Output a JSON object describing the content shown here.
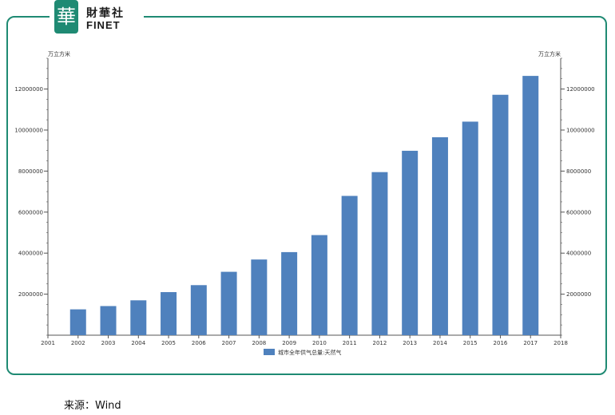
{
  "logo": {
    "badge_char": "華",
    "name_cn": "財華社",
    "name_en": "FINET"
  },
  "source_text": "来源：Wind",
  "chart_data": {
    "type": "bar",
    "categories": [
      "2002",
      "2003",
      "2004",
      "2005",
      "2006",
      "2007",
      "2008",
      "2009",
      "2010",
      "2011",
      "2012",
      "2013",
      "2014",
      "2015",
      "2016",
      "2017"
    ],
    "series": [
      {
        "name": "城市全年供气总量:天然气",
        "color": "#4f81bd",
        "values": [
          1260000,
          1420000,
          1700000,
          2100000,
          2440000,
          3090000,
          3690000,
          4050000,
          4880000,
          6790000,
          7950000,
          8990000,
          9650000,
          10410000,
          11720000,
          12640000
        ]
      }
    ],
    "x_ticks": [
      "2001",
      "2002",
      "2003",
      "2004",
      "2005",
      "2006",
      "2007",
      "2008",
      "2009",
      "2010",
      "2011",
      "2012",
      "2013",
      "2014",
      "2015",
      "2016",
      "2017",
      "2018"
    ],
    "ylim": [
      0,
      13500000
    ],
    "y_ticks": [
      "2000000",
      "4000000",
      "6000000",
      "8000000",
      "10000000",
      "12000000"
    ],
    "ylabel_left": "万立方米",
    "ylabel_right": "万立方米",
    "legend_position": "bottom-center",
    "grid": false
  }
}
